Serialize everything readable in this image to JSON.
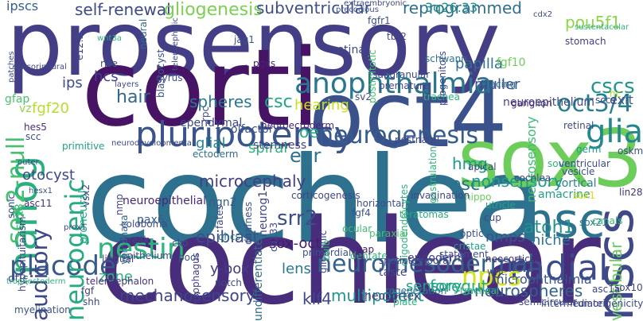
{
  "cloud": {
    "words": [
      {
        "text": "prosensory",
        "color": "#433e85"
      },
      {
        "text": "corti",
        "color": "#471365"
      },
      {
        "text": "oct4",
        "color": "#3b518b"
      },
      {
        "text": "cochlea",
        "color": "#2d718e"
      },
      {
        "text": "cochlear",
        "color": "#472d7b"
      },
      {
        "text": "sox3",
        "color": "#6ccd5a"
      },
      {
        "text": "nsc",
        "color": "#2c728e"
      },
      {
        "text": "pluripotency",
        "color": "#3a548c"
      },
      {
        "text": "nanog",
        "color": "#2ab07f"
      },
      {
        "text": "anophthalmia",
        "color": "#2a768e"
      },
      {
        "text": "neurogenesis",
        "color": "#365c8d"
      },
      {
        "text": "nscs",
        "color": "#3f4889"
      },
      {
        "text": "placode",
        "color": "#38598c"
      },
      {
        "text": "radial",
        "color": "#3e4a89"
      },
      {
        "text": "nestin",
        "color": "#2fb47c"
      },
      {
        "text": "neuromesodermal",
        "color": "#33638d"
      },
      {
        "text": "glia",
        "color": "#24878e"
      },
      {
        "text": "oct3/4",
        "color": "#277f8e"
      },
      {
        "text": "npcs",
        "color": "#d2e21b"
      },
      {
        "text": "neurogenic",
        "color": "#25ac82"
      },
      {
        "text": "auditory",
        "color": "#3f4788"
      },
      {
        "text": "sox2-null",
        "color": "#46c06f"
      },
      {
        "text": "cscs",
        "color": "#1f978b"
      },
      {
        "text": "hair",
        "color": "#31688e"
      },
      {
        "text": "self-renewal",
        "color": "#3e4989"
      },
      {
        "text": "gliogenesis",
        "color": "#7ad151"
      },
      {
        "text": "subventricular",
        "color": "#3d4e8a"
      },
      {
        "text": "reprogrammed",
        "color": "#2e6f8e"
      },
      {
        "text": "pou5f1",
        "color": "#8bd646"
      },
      {
        "text": "atoh1",
        "color": "#20938c"
      },
      {
        "text": "srr2",
        "color": "#3c4f8a"
      },
      {
        "text": "epiblast",
        "color": "#3d4d8a"
      },
      {
        "text": "microcephaly",
        "color": "#423f85"
      },
      {
        "text": "esc",
        "color": "#2b748e"
      },
      {
        "text": "nonsensory",
        "color": "#1f9a8a"
      },
      {
        "text": "ear",
        "color": "#2c738e"
      },
      {
        "text": "oe",
        "color": "#22a785"
      },
      {
        "text": "hmg",
        "color": "#1e9c89"
      },
      {
        "text": "spheres",
        "color": "#2a778e"
      },
      {
        "text": "csc",
        "color": "#21a685"
      },
      {
        "text": "mechanosensory",
        "color": "#414487"
      },
      {
        "text": "multipotent",
        "color": "#1f968b"
      },
      {
        "text": "klf4",
        "color": "#3e4989"
      },
      {
        "text": "neurospheres",
        "color": "#355f8d"
      },
      {
        "text": "foregut",
        "color": "#22a884"
      },
      {
        "text": "sensory",
        "color": "#20a486"
      },
      {
        "text": "lens",
        "color": "#2a788e"
      },
      {
        "text": "sox-oct",
        "color": "#481a6c"
      },
      {
        "text": "nmps",
        "color": "#3b528b"
      },
      {
        "text": "niche",
        "color": "#2b748e"
      },
      {
        "text": "microphthalmia",
        "color": "#3a548c"
      },
      {
        "text": "vestibular",
        "color": "#67cc5c"
      },
      {
        "text": "y-box",
        "color": "#433d84"
      },
      {
        "text": "zone",
        "color": "#2fb47c"
      },
      {
        "text": "hearing",
        "color": "#c8e020"
      },
      {
        "text": "spiral",
        "color": "#2fb47c"
      },
      {
        "text": "glial",
        "color": "#24878e"
      },
      {
        "text": "otocyst",
        "color": "#404688"
      },
      {
        "text": "fgf20",
        "color": "#b5de2b"
      },
      {
        "text": "ips",
        "color": "#3e4c8a"
      },
      {
        "text": "hcs",
        "color": "#414287"
      },
      {
        "text": "muller",
        "color": "#3d4e8a"
      },
      {
        "text": "papilla",
        "color": "#2d718e"
      },
      {
        "text": "ipscs",
        "color": "#355f8d"
      },
      {
        "text": "3q26.33",
        "color": "#218f8d"
      },
      {
        "text": "neurosensory",
        "color": "#3dbc74"
      },
      {
        "text": "neuroepithelium",
        "color": "#3f4889"
      },
      {
        "text": "exit",
        "color": "#3b528b"
      },
      {
        "text": "cortical",
        "color": "#26828e"
      },
      {
        "text": "amacrine",
        "color": "#1f9e89"
      },
      {
        "text": "neuroepithelial",
        "color": "#482677"
      },
      {
        "text": "ngn2",
        "color": "#375a8c"
      },
      {
        "text": "ectoderm",
        "color": "#2e6e8e"
      },
      {
        "text": "olfactory",
        "color": "#3b528b"
      },
      {
        "text": "stemness",
        "color": "#433e85"
      },
      {
        "text": "fgf10",
        "color": "#6ece58"
      },
      {
        "text": "neurog1",
        "color": "#404688"
      },
      {
        "text": "cd133",
        "color": "#3f4889"
      },
      {
        "text": "pax6",
        "color": "#355e8d"
      },
      {
        "text": "sox21",
        "color": "#2a788e"
      },
      {
        "text": "asc11",
        "color": "#472f7d"
      },
      {
        "text": "proneural",
        "color": "#24aa83"
      },
      {
        "text": "sox8",
        "color": "#34b679"
      },
      {
        "text": "lingual",
        "color": "#404688"
      },
      {
        "text": "otic",
        "color": "#3f4889"
      },
      {
        "text": "endoderm",
        "color": "#433e85"
      },
      {
        "text": "taste",
        "color": "#3f4889"
      },
      {
        "text": "neocortex",
        "color": "#443983"
      },
      {
        "text": "undifferentiated",
        "color": "#2f6c8e"
      },
      {
        "text": "teratomas",
        "color": "#25ac82"
      },
      {
        "text": "fgf4",
        "color": "#3b528b"
      },
      {
        "text": "ganglion",
        "color": "#482878"
      },
      {
        "text": "apical",
        "color": "#3e4a89"
      },
      {
        "text": "trachea",
        "color": "#2fb47c"
      },
      {
        "text": "tracing",
        "color": "#2c738e"
      },
      {
        "text": "ependymal",
        "color": "#3f4788"
      },
      {
        "text": "ocular",
        "color": "#40bd72"
      },
      {
        "text": "dentate",
        "color": "#2fb47c"
      },
      {
        "text": "cristae",
        "color": "#1fa088"
      },
      {
        "text": "yap",
        "color": "#482071"
      },
      {
        "text": "fgf",
        "color": "#433e85"
      },
      {
        "text": "shh",
        "color": "#3f4788"
      },
      {
        "text": "blastocyst",
        "color": "#3b528b"
      },
      {
        "text": "sox1",
        "color": "#d8e219"
      },
      {
        "text": "fgfr1",
        "color": "#3e4c8a"
      },
      {
        "text": "oskm",
        "color": "#3d4e8a"
      },
      {
        "text": "lin28",
        "color": "#46337f"
      },
      {
        "text": "retina",
        "color": "#3e4989"
      },
      {
        "text": "pgcs",
        "color": "#482173"
      },
      {
        "text": "vz",
        "color": "#8fd744"
      },
      {
        "text": "gfap",
        "color": "#4ac16d"
      },
      {
        "text": "scc",
        "color": "#3c4f8a"
      },
      {
        "text": "hes5",
        "color": "#472c7a"
      },
      {
        "text": "primitive",
        "color": "#1fa188"
      },
      {
        "text": "gyrus",
        "color": "#3e4a89"
      },
      {
        "text": "neural",
        "color": "#31688e"
      },
      {
        "text": "schwann",
        "color": "#2c738e"
      },
      {
        "text": "premature",
        "color": "#404588"
      },
      {
        "text": "tbr2",
        "color": "#3f4788"
      },
      {
        "text": "jag1",
        "color": "#3b528b"
      },
      {
        "text": "stomach",
        "color": "#433e85"
      },
      {
        "text": "sccs",
        "color": "#3e4989"
      },
      {
        "text": "hc",
        "color": "#b8de29"
      },
      {
        "text": "sv2",
        "color": "#3d4e8a"
      },
      {
        "text": "postnatal",
        "color": "#3f4889"
      },
      {
        "text": "sound",
        "color": "#2fb47c"
      },
      {
        "text": "oligodendrocytes",
        "color": "#2db27d"
      },
      {
        "text": "canals",
        "color": "#38b977"
      },
      {
        "text": "cup",
        "color": "#3e4a89"
      },
      {
        "text": "optic",
        "color": "#3d4e8a"
      },
      {
        "text": "neocortical",
        "color": "#472c7a"
      },
      {
        "text": "hippo",
        "color": "#6ccd5a"
      },
      {
        "text": "utricle",
        "color": "#20a386"
      },
      {
        "text": "horizontal",
        "color": "#3d4e8a"
      },
      {
        "text": "paraxial",
        "color": "#4ac16d"
      },
      {
        "text": "invagination",
        "color": "#3f4788"
      },
      {
        "text": "gliogenic",
        "color": "#414487"
      },
      {
        "text": "ohcs",
        "color": "#2a778e"
      },
      {
        "text": "fates",
        "color": "#3e4989"
      },
      {
        "text": "corticogenesis",
        "color": "#3f4788"
      },
      {
        "text": "deafness",
        "color": "#3d4e8a"
      },
      {
        "text": "coloboma",
        "color": "#3e4c8a"
      },
      {
        "text": "streak",
        "color": "#414487"
      },
      {
        "text": "epithelium",
        "color": "#3e4a89"
      },
      {
        "text": "cko",
        "color": "#3e4989"
      },
      {
        "text": "pool",
        "color": "#3b528b"
      },
      {
        "text": "yamanaka",
        "color": "#33638d"
      },
      {
        "text": "nmp",
        "color": "#3f4788"
      },
      {
        "text": "vsx2",
        "color": "#414487"
      },
      {
        "text": "sonic",
        "color": "#3e4989"
      },
      {
        "text": "hypopituitarism",
        "color": "#3f4889"
      },
      {
        "text": "trophectoderm",
        "color": "#2fb47c"
      },
      {
        "text": "myelination",
        "color": "#3b528b"
      },
      {
        "text": "telencephalon",
        "color": "#46337f"
      },
      {
        "text": "notch",
        "color": "#3f4788"
      },
      {
        "text": "esophagus",
        "color": "#433e85"
      },
      {
        "text": "primordial",
        "color": "#3b528b"
      },
      {
        "text": "bulb",
        "color": "#2fb47c"
      },
      {
        "text": "spatiotemporal",
        "color": "#3f4788"
      },
      {
        "text": "regeneration",
        "color": "#2c738e"
      },
      {
        "text": "plate",
        "color": "#2fb47c"
      },
      {
        "text": "intermediate",
        "color": "#3e4a89"
      },
      {
        "text": "semicircular",
        "color": "#3e4989"
      },
      {
        "text": "tumorigenicity",
        "color": "#3f4788"
      },
      {
        "text": "wnt",
        "color": "#3b528b"
      },
      {
        "text": "statement",
        "color": "#3e4c8a"
      },
      {
        "text": "tracheal",
        "color": "#2fb47c"
      },
      {
        "text": "sox10",
        "color": "#404588"
      },
      {
        "text": "cochlea",
        "color": "#3e4a89"
      },
      {
        "text": "asc1a",
        "color": "#3f4788"
      },
      {
        "text": "vesicle",
        "color": "#3b528b"
      },
      {
        "text": "ventricular",
        "color": "#3e4989"
      },
      {
        "text": "germ",
        "color": "#1f9e89"
      },
      {
        "text": "gastrulation",
        "color": "#34b679"
      },
      {
        "text": "retinal",
        "color": "#3e4989"
      },
      {
        "text": "extraembryonic",
        "color": "#3f4889"
      },
      {
        "text": "precocious",
        "color": "#3b528b"
      },
      {
        "text": "patches",
        "color": "#3e4c8a"
      },
      {
        "text": "sensorineural",
        "color": "#3f4788"
      },
      {
        "text": "e12.5",
        "color": "#3e4989"
      },
      {
        "text": "wnt3a",
        "color": "#2fb47c"
      },
      {
        "text": "rise",
        "color": "#3b528b"
      },
      {
        "text": "layers",
        "color": "#3e4989"
      },
      {
        "text": "telencephalic",
        "color": "#3f4788"
      },
      {
        "text": "cdx2",
        "color": "#3e4c8a"
      },
      {
        "text": "sustentacular",
        "color": "#2fb47c"
      },
      {
        "text": "postmitotic",
        "color": "#4ac16d"
      },
      {
        "text": "progenitors",
        "color": "#3f4788"
      },
      {
        "text": "subgranular",
        "color": "#3e4989"
      },
      {
        "text": "neuroectoderm",
        "color": "#482677"
      },
      {
        "text": "rpc",
        "color": "#3b528b"
      },
      {
        "text": "neurodevelopmental",
        "color": "#3f4788"
      },
      {
        "text": "outer",
        "color": "#3e4989"
      },
      {
        "text": "hesx1",
        "color": "#3b528b"
      },
      {
        "text": "prox1",
        "color": "#3f4788"
      }
    ]
  }
}
